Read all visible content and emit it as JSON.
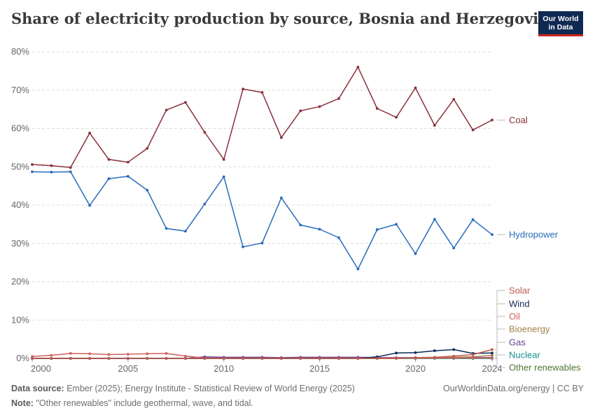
{
  "header": {
    "title": "Share of electricity production by source, Bosnia and Herzegovina",
    "logo_line1": "Our World",
    "logo_line2": "in Data"
  },
  "footer": {
    "source_label": "Data source:",
    "source_text": "Ember (2025); Energy Institute - Statistical Review of World Energy (2025)",
    "link_text": "OurWorldinData.org/energy | CC BY",
    "note_label": "Note:",
    "note_text": "\"Other renewables\" include geothermal, wave, and tidal."
  },
  "chart_data": {
    "type": "line",
    "title": "Share of electricity production by source, Bosnia and Herzegovina",
    "xlabel": "",
    "ylabel": "",
    "xlim": [
      2000,
      2024
    ],
    "ylim": [
      0,
      80
    ],
    "x_ticks": [
      2000,
      2005,
      2010,
      2015,
      2020,
      2024
    ],
    "y_ticks": [
      0,
      10,
      20,
      30,
      40,
      50,
      60,
      70,
      80
    ],
    "y_tick_labels": [
      "0%",
      "10%",
      "20%",
      "30%",
      "40%",
      "50%",
      "60%",
      "70%",
      "80%"
    ],
    "grid": true,
    "series": [
      {
        "name": "Coal",
        "color": "#883039",
        "x": [
          2000,
          2001,
          2002,
          2003,
          2004,
          2005,
          2006,
          2007,
          2008,
          2009,
          2010,
          2011,
          2012,
          2013,
          2014,
          2015,
          2016,
          2017,
          2018,
          2019,
          2020,
          2021,
          2022,
          2023,
          2024
        ],
        "values": [
          50.6,
          50.3,
          49.8,
          58.8,
          51.9,
          51.2,
          54.8,
          64.8,
          66.8,
          59.0,
          51.9,
          70.3,
          69.4,
          57.6,
          64.6,
          65.7,
          67.8,
          76.0,
          65.2,
          62.9,
          70.6,
          60.8,
          67.6,
          59.6,
          62.2
        ]
      },
      {
        "name": "Hydropower",
        "color": "#286bbb",
        "x": [
          2000,
          2001,
          2002,
          2003,
          2004,
          2005,
          2006,
          2007,
          2008,
          2009,
          2010,
          2011,
          2012,
          2013,
          2014,
          2015,
          2016,
          2017,
          2018,
          2019,
          2020,
          2021,
          2022,
          2023,
          2024
        ],
        "values": [
          48.7,
          48.6,
          48.7,
          39.9,
          46.9,
          47.5,
          43.9,
          33.9,
          33.2,
          40.3,
          47.4,
          29.1,
          30.1,
          41.9,
          34.8,
          33.7,
          31.5,
          23.3,
          33.6,
          35.0,
          27.3,
          36.3,
          28.8,
          36.2,
          32.3
        ]
      },
      {
        "name": "Solar",
        "color": "#c05a4f",
        "x": [
          2000,
          2001,
          2002,
          2003,
          2004,
          2005,
          2006,
          2007,
          2008,
          2009,
          2010,
          2011,
          2012,
          2013,
          2014,
          2015,
          2016,
          2017,
          2018,
          2019,
          2020,
          2021,
          2022,
          2023,
          2024
        ],
        "values": [
          0,
          0,
          0,
          0,
          0,
          0,
          0,
          0,
          0,
          0,
          0,
          0,
          0,
          0,
          0,
          0,
          0,
          0,
          0,
          0,
          0.2,
          0.3,
          0.6,
          1.0,
          2.3
        ]
      },
      {
        "name": "Wind",
        "color": "#0b2a5a",
        "x": [
          2000,
          2001,
          2002,
          2003,
          2004,
          2005,
          2006,
          2007,
          2008,
          2009,
          2010,
          2011,
          2012,
          2013,
          2014,
          2015,
          2016,
          2017,
          2018,
          2019,
          2020,
          2021,
          2022,
          2023,
          2024
        ],
        "values": [
          0,
          0,
          0,
          0,
          0,
          0,
          0,
          0,
          0,
          0,
          0,
          0,
          0,
          0,
          0,
          0,
          0,
          0,
          0.4,
          1.4,
          1.5,
          2.0,
          2.3,
          1.3,
          1.4
        ]
      },
      {
        "name": "Oil",
        "color": "#d0605e",
        "x": [
          2000,
          2001,
          2002,
          2003,
          2004,
          2005,
          2006,
          2007,
          2008,
          2009,
          2010,
          2011,
          2012,
          2013,
          2014,
          2015,
          2016,
          2017,
          2018,
          2019,
          2020,
          2021,
          2022,
          2023,
          2024
        ],
        "values": [
          0.5,
          0.8,
          1.3,
          1.2,
          1.0,
          1.1,
          1.2,
          1.3,
          0.6,
          0.1,
          0.1,
          0.1,
          0.1,
          0.1,
          0.1,
          0.1,
          0.1,
          0.1,
          0.1,
          0.1,
          0.1,
          0.1,
          0.1,
          0.1,
          0.1
        ]
      },
      {
        "name": "Bioenergy",
        "color": "#a2804b",
        "x": [
          2000,
          2001,
          2002,
          2003,
          2004,
          2005,
          2006,
          2007,
          2008,
          2009,
          2010,
          2011,
          2012,
          2013,
          2014,
          2015,
          2016,
          2017,
          2018,
          2019,
          2020,
          2021,
          2022,
          2023,
          2024
        ],
        "values": [
          0,
          0,
          0,
          0,
          0,
          0,
          0,
          0,
          0,
          0,
          0,
          0,
          0,
          0,
          0,
          0,
          0,
          0,
          0,
          0,
          0.1,
          0.1,
          0.3,
          0.4,
          0.8
        ]
      },
      {
        "name": "Gas",
        "color": "#6d3e91",
        "x": [
          2000,
          2001,
          2002,
          2003,
          2004,
          2005,
          2006,
          2007,
          2008,
          2009,
          2010,
          2011,
          2012,
          2013,
          2014,
          2015,
          2016,
          2017,
          2018,
          2019,
          2020,
          2021,
          2022,
          2023,
          2024
        ],
        "values": [
          0,
          0,
          0,
          0,
          0,
          0,
          0,
          0,
          0,
          0.4,
          0.3,
          0.3,
          0.3,
          0.2,
          0.3,
          0.3,
          0.3,
          0.3,
          0.2,
          0.2,
          0.2,
          0.2,
          0.2,
          0.2,
          0.2
        ]
      },
      {
        "name": "Nuclear",
        "color": "#16928f",
        "x": [
          2000,
          2001,
          2002,
          2003,
          2004,
          2005,
          2006,
          2007,
          2008,
          2009,
          2010,
          2011,
          2012,
          2013,
          2014,
          2015,
          2016,
          2017,
          2018,
          2019,
          2020,
          2021,
          2022,
          2023,
          2024
        ],
        "values": [
          0,
          0,
          0,
          0,
          0,
          0,
          0,
          0,
          0,
          0,
          0,
          0,
          0,
          0,
          0,
          0,
          0,
          0,
          0,
          0,
          0,
          0,
          0,
          0,
          0
        ]
      },
      {
        "name": "Other renewables",
        "color": "#4c7a32",
        "x": [
          2000,
          2001,
          2002,
          2003,
          2004,
          2005,
          2006,
          2007,
          2008,
          2009,
          2010,
          2011,
          2012,
          2013,
          2014,
          2015,
          2016,
          2017,
          2018,
          2019,
          2020,
          2021,
          2022,
          2023,
          2024
        ],
        "values": [
          0,
          0,
          0,
          0,
          0,
          0,
          0,
          0,
          0,
          0,
          0,
          0,
          0,
          0,
          0,
          0,
          0,
          0,
          0,
          0,
          0,
          0,
          0,
          0,
          0
        ]
      }
    ]
  }
}
